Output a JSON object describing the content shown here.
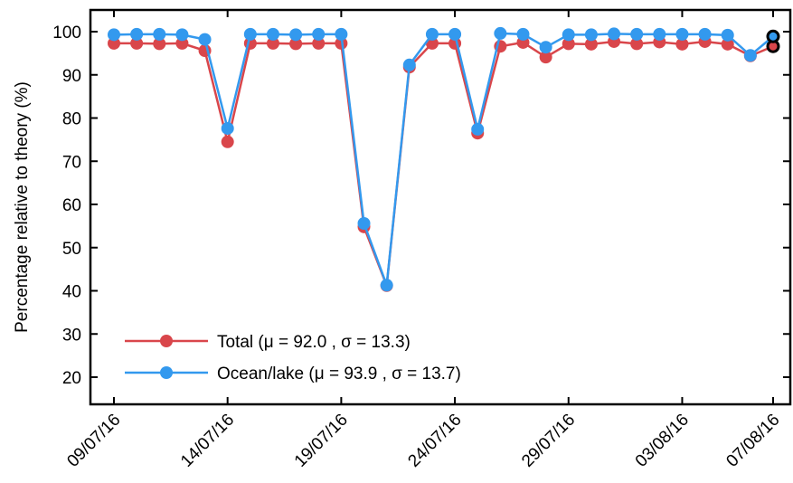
{
  "chart_data": {
    "type": "line",
    "xlabel": "",
    "ylabel": "Percentage relative to theory (%)",
    "ylim": [
      13,
      105
    ],
    "yticks": [
      20,
      30,
      40,
      50,
      60,
      70,
      80,
      90,
      100
    ],
    "xticks": [
      "09/07/16",
      "14/07/16",
      "19/07/16",
      "24/07/16",
      "29/07/16",
      "03/08/16",
      "07/08/16"
    ],
    "xtick_dates": [
      "2016-07-09",
      "2016-07-14",
      "2016-07-19",
      "2016-07-24",
      "2016-07-29",
      "2016-08-03",
      "2016-08-07"
    ],
    "xlim": [
      "2016-07-09",
      "2016-08-07"
    ],
    "grid": false,
    "legend_position": "bottom-left",
    "dates": [
      "2016-07-09",
      "2016-07-10",
      "2016-07-11",
      "2016-07-12",
      "2016-07-13",
      "2016-07-14",
      "2016-07-15",
      "2016-07-16",
      "2016-07-17",
      "2016-07-18",
      "2016-07-19",
      "2016-07-20",
      "2016-07-21",
      "2016-07-22",
      "2016-07-23",
      "2016-07-24",
      "2016-07-25",
      "2016-07-26",
      "2016-07-27",
      "2016-07-28",
      "2016-07-29",
      "2016-07-30",
      "2016-07-31",
      "2016-08-01",
      "2016-08-02",
      "2016-08-03",
      "2016-08-04",
      "2016-08-05",
      "2016-08-06",
      "2016-08-07"
    ],
    "series": [
      {
        "name": "Total (μ = 92.0 , σ = 13.3)",
        "color": "#d9464b",
        "values": [
          97.3,
          97.3,
          97.2,
          97.3,
          95.6,
          74.5,
          97.3,
          97.3,
          97.2,
          97.3,
          97.3,
          54.8,
          41.2,
          91.8,
          97.3,
          97.3,
          76.5,
          96.6,
          97.5,
          94.1,
          97.2,
          97.1,
          97.7,
          97.2,
          97.6,
          97.1,
          97.7,
          97.1,
          94.4,
          96.6
        ]
      },
      {
        "name": "Ocean/lake (μ = 93.9 , σ = 13.7)",
        "color": "#3399ee",
        "values": [
          99.3,
          99.4,
          99.4,
          99.3,
          98.2,
          77.6,
          99.4,
          99.4,
          99.3,
          99.4,
          99.4,
          55.6,
          41.3,
          92.3,
          99.4,
          99.4,
          77.4,
          99.6,
          99.4,
          96.4,
          99.3,
          99.3,
          99.5,
          99.4,
          99.4,
          99.4,
          99.4,
          99.2,
          94.5,
          98.9
        ]
      }
    ],
    "last_point_marker": {
      "outline_color": "#000000"
    }
  }
}
